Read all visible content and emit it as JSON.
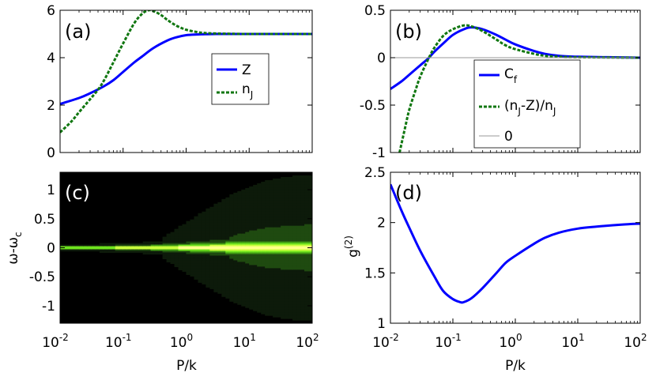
{
  "figure": {
    "xlabel": "P/k",
    "x_tick_labels": [
      {
        "base": "10",
        "exp": "-2"
      },
      {
        "base": "10",
        "exp": "-1"
      },
      {
        "base": "10",
        "exp": "0"
      },
      {
        "base": "10",
        "exp": "1"
      },
      {
        "base": "10",
        "exp": "2"
      }
    ]
  },
  "colors": {
    "blue": "#0000ff",
    "green": "#117711",
    "gray": "#999999",
    "black": "#000000"
  },
  "chart_data": [
    {
      "id": "a",
      "panel_label": "(a)",
      "type": "line",
      "xscale": "log",
      "xlim": [
        0.01,
        100
      ],
      "ylim": [
        0,
        6
      ],
      "y_ticks": [
        0,
        2,
        4,
        6
      ],
      "y_tick_labels": [
        "0",
        "2",
        "4",
        "6"
      ],
      "legend_placement": "center-right",
      "series": [
        {
          "name": "Z",
          "name_sub": "",
          "style": "solid",
          "color": "blue",
          "x": [
            0.01,
            0.02,
            0.03,
            0.05,
            0.07,
            0.1,
            0.15,
            0.2,
            0.3,
            0.5,
            0.7,
            1,
            1.5,
            2,
            3,
            5,
            10,
            20,
            100
          ],
          "y": [
            2.05,
            2.3,
            2.5,
            2.8,
            3.05,
            3.4,
            3.8,
            4.05,
            4.4,
            4.72,
            4.86,
            4.95,
            4.98,
            4.99,
            5.0,
            5.0,
            5.0,
            5.0,
            5.0
          ]
        },
        {
          "name": "n",
          "name_sub": "J",
          "style": "dashed",
          "color": "green",
          "x": [
            0.01,
            0.015,
            0.02,
            0.03,
            0.04,
            0.05,
            0.07,
            0.1,
            0.15,
            0.2,
            0.25,
            0.3,
            0.4,
            0.5,
            0.7,
            1,
            1.5,
            2,
            3,
            5,
            10,
            100
          ],
          "y": [
            0.85,
            1.3,
            1.7,
            2.25,
            2.65,
            3.05,
            3.8,
            4.6,
            5.45,
            5.85,
            6.0,
            5.97,
            5.8,
            5.6,
            5.35,
            5.18,
            5.08,
            5.04,
            5.02,
            5.01,
            5.0,
            5.0
          ]
        }
      ]
    },
    {
      "id": "b",
      "panel_label": "(b)",
      "type": "line",
      "xscale": "log",
      "xlim": [
        0.01,
        100
      ],
      "ylim": [
        -1,
        0.5
      ],
      "y_ticks": [
        -1,
        -0.5,
        0,
        0.5
      ],
      "y_tick_labels": [
        "-1",
        "-0.5",
        "0",
        "0.5"
      ],
      "legend_placement": "bottom-right",
      "series": [
        {
          "name": "C",
          "name_sub": "f",
          "style": "solid",
          "color": "blue",
          "x": [
            0.01,
            0.015,
            0.02,
            0.03,
            0.04,
            0.05,
            0.07,
            0.1,
            0.15,
            0.2,
            0.3,
            0.5,
            0.7,
            1,
            2,
            3,
            5,
            10,
            100
          ],
          "y": [
            -0.33,
            -0.25,
            -0.18,
            -0.08,
            -0.01,
            0.06,
            0.15,
            0.24,
            0.3,
            0.32,
            0.3,
            0.24,
            0.19,
            0.14,
            0.07,
            0.04,
            0.02,
            0.01,
            0.0
          ]
        },
        {
          "name": "(n",
          "name_sub": "J",
          "name_tail": "-Z)/n",
          "name_sub2": "J",
          "style": "dashed",
          "color": "green",
          "x": [
            0.014,
            0.017,
            0.02,
            0.025,
            0.03,
            0.04,
            0.05,
            0.07,
            0.1,
            0.15,
            0.2,
            0.3,
            0.5,
            0.7,
            1,
            2,
            3,
            5,
            10,
            100
          ],
          "y": [
            -1.0,
            -0.75,
            -0.55,
            -0.35,
            -0.2,
            -0.02,
            0.1,
            0.23,
            0.3,
            0.34,
            0.33,
            0.28,
            0.19,
            0.13,
            0.09,
            0.04,
            0.02,
            0.01,
            0.005,
            0.0
          ]
        },
        {
          "name": "0",
          "name_sub": "",
          "style": "thin",
          "color": "gray",
          "x": [
            0.01,
            100
          ],
          "y": [
            0,
            0
          ]
        }
      ]
    },
    {
      "id": "c",
      "panel_label": "(c)",
      "type": "heatmap",
      "xscale": "log",
      "xlim": [
        0.01,
        100
      ],
      "ylim": [
        -1.3,
        1.3
      ],
      "ylabel": "ω-ω",
      "ylabel_sub": "c",
      "y_ticks": [
        -1,
        -0.5,
        0,
        0.5,
        1
      ],
      "y_tick_labels": [
        "-1",
        "-0.5",
        "0",
        "0.5",
        "1"
      ],
      "colormap": [
        "#000000",
        "#0d1a0a",
        "#1f4a10",
        "#3f9a14",
        "#6fe41e",
        "#c8ff3c",
        "#ffff88"
      ]
    },
    {
      "id": "d",
      "panel_label": "(d)",
      "type": "line",
      "xscale": "log",
      "xlim": [
        0.01,
        100
      ],
      "ylim": [
        1,
        2.5
      ],
      "ylabel": "g",
      "ylabel_sup": "(2)",
      "y_ticks": [
        1,
        1.5,
        2,
        2.5
      ],
      "y_tick_labels": [
        "1",
        "1.5",
        "2",
        "2.5"
      ],
      "series": [
        {
          "name": "",
          "style": "solid",
          "color": "blue",
          "x": [
            0.01,
            0.015,
            0.02,
            0.03,
            0.05,
            0.07,
            0.1,
            0.13,
            0.15,
            0.2,
            0.3,
            0.5,
            0.7,
            1,
            2,
            3,
            5,
            10,
            20,
            50,
            100
          ],
          "y": [
            2.38,
            2.12,
            1.95,
            1.72,
            1.47,
            1.32,
            1.24,
            1.21,
            1.21,
            1.25,
            1.35,
            1.5,
            1.6,
            1.67,
            1.79,
            1.85,
            1.9,
            1.94,
            1.96,
            1.98,
            1.99
          ]
        }
      ]
    }
  ]
}
